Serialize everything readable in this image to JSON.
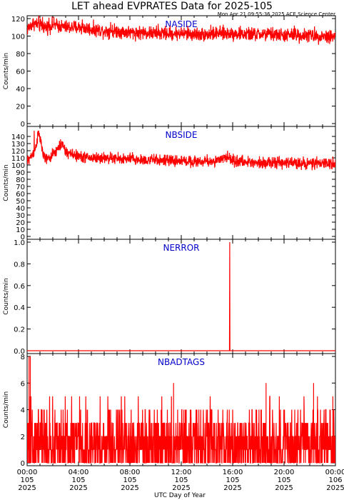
{
  "title": "LET ahead EVPRATES Data for 2025-105",
  "subtitle": "Mon Apr 21 09:55:36 2025 ACE Science Center",
  "xlabel": "UTC Day of Year",
  "colors": {
    "series": "#ff0000",
    "panel_label": "#0000cc",
    "axes": "#000000"
  },
  "x_ticks": [
    {
      "time": "00:00",
      "doy": "105",
      "year": "2025"
    },
    {
      "time": "04:00",
      "doy": "105",
      "year": "2025"
    },
    {
      "time": "08:00",
      "doy": "105",
      "year": "2025"
    },
    {
      "time": "12:00",
      "doy": "105",
      "year": "2025"
    },
    {
      "time": "16:00",
      "doy": "105",
      "year": "2025"
    },
    {
      "time": "20:00",
      "doy": "105",
      "year": "2025"
    },
    {
      "time": "00:00",
      "doy": "106",
      "year": "2025"
    }
  ],
  "chart_data": [
    {
      "type": "line",
      "name": "NASIDE",
      "ylabel": "Counts/min",
      "ylim": [
        0,
        120
      ],
      "yticks": [
        "0",
        "20",
        "40",
        "60",
        "80",
        "100",
        "120"
      ],
      "xlim_hours": [
        0,
        24
      ],
      "x_hours": [
        0,
        0.5,
        1,
        1.5,
        2,
        3,
        4,
        5,
        6,
        7,
        8,
        9,
        10,
        11,
        12,
        13,
        14,
        15,
        16,
        17,
        18,
        19,
        20,
        21,
        22,
        23,
        24
      ],
      "y": [
        108,
        115,
        112,
        110,
        113,
        110,
        110,
        108,
        106,
        106,
        104,
        104,
        103,
        103,
        103,
        102,
        102,
        103,
        103,
        102,
        102,
        102,
        101,
        101,
        101,
        100,
        100
      ],
      "noise": 6,
      "spikes": [
        [
          0.9,
          124
        ],
        [
          1.2,
          122
        ],
        [
          1.7,
          121
        ],
        [
          4.3,
          119
        ],
        [
          6.5,
          116
        ],
        [
          10.2,
          114
        ],
        [
          14.3,
          113
        ],
        [
          20.8,
          112
        ]
      ]
    },
    {
      "type": "line",
      "name": "NBSIDE",
      "ylabel": "Counts/min",
      "ylim": [
        0,
        150
      ],
      "yticks": [
        "0",
        "10",
        "20",
        "30",
        "40",
        "50",
        "60",
        "70",
        "80",
        "90",
        "100",
        "110",
        "120",
        "130",
        "140"
      ],
      "xlim_hours": [
        0,
        24
      ],
      "x_hours": [
        0,
        0.3,
        0.6,
        0.9,
        1.1,
        1.3,
        1.6,
        1.9,
        2.3,
        2.7,
        3,
        4,
        5,
        6,
        7,
        8,
        9,
        10,
        11,
        12,
        13,
        14,
        15,
        15.6,
        16,
        17,
        18,
        19,
        20,
        21,
        22,
        23,
        24
      ],
      "y": [
        105,
        112,
        120,
        145,
        130,
        110,
        108,
        112,
        120,
        130,
        118,
        112,
        110,
        110,
        109,
        108,
        107,
        107,
        106,
        106,
        105,
        105,
        106,
        112,
        106,
        104,
        104,
        103,
        103,
        103,
        102,
        102,
        102
      ],
      "noise": 6,
      "spikes": [
        [
          0.55,
          148
        ],
        [
          0.95,
          145
        ],
        [
          2.6,
          136
        ],
        [
          8.2,
          118
        ],
        [
          15.6,
          120
        ],
        [
          21.5,
          112
        ],
        [
          23.8,
          112
        ]
      ]
    },
    {
      "type": "line",
      "name": "NERROR",
      "ylabel": "Counts/min",
      "ylim": [
        0,
        1.0
      ],
      "yticks": [
        "0.0",
        "0.2",
        "0.4",
        "0.6",
        "0.8",
        "1.0"
      ],
      "xlim_hours": [
        0,
        24
      ],
      "x_hours": [
        0,
        15.75,
        15.77,
        15.79,
        24
      ],
      "y": [
        0,
        0,
        1,
        0,
        0
      ],
      "noise": 0,
      "spikes": []
    },
    {
      "type": "line",
      "name": "NBADTAGS",
      "ylabel": "Counts/min",
      "ylim": [
        0,
        8
      ],
      "yticks": [
        "0",
        "2",
        "4",
        "6",
        "8"
      ],
      "xlim_hours": [
        0,
        24
      ],
      "x_hours": [
        0,
        24
      ],
      "y": [
        1.5,
        1.5
      ],
      "noise": "discrete",
      "spikes": [
        [
          0.15,
          8
        ],
        [
          0.25,
          8
        ],
        [
          11.4,
          6
        ],
        [
          18.6,
          6
        ],
        [
          22.3,
          6
        ],
        [
          23.8,
          5
        ]
      ]
    }
  ]
}
